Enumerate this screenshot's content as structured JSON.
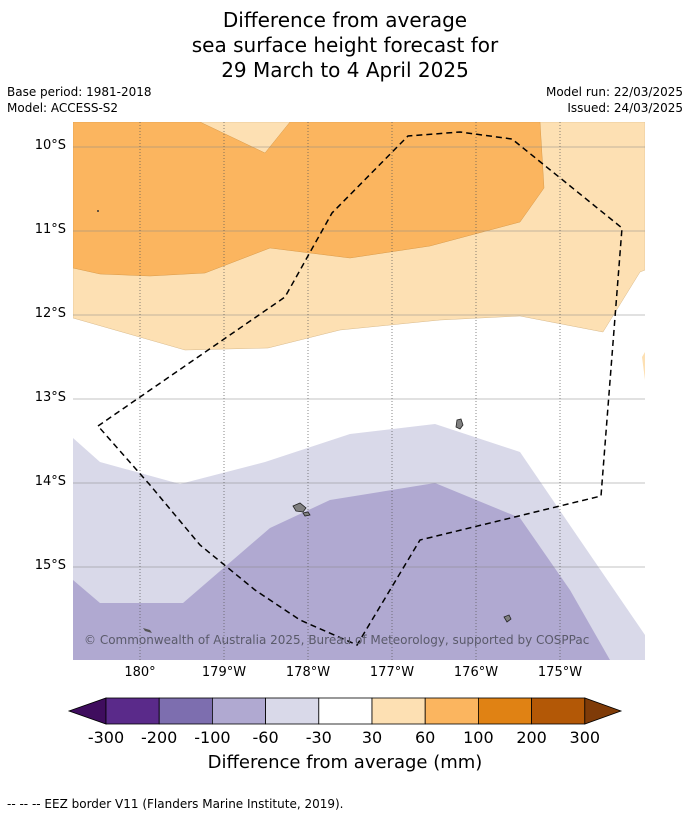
{
  "title_lines": [
    "Difference from average",
    "sea surface height forecast for",
    "29 March to 4 April 2025"
  ],
  "base_period": "Base period: 1981-2018",
  "model": "Model: ACCESS-S2",
  "model_run": "Model run: 22/03/2025",
  "issued": "Issued: 24/03/2025",
  "lat_labels": [
    "10°S",
    "11°S",
    "12°S",
    "13°S",
    "14°S",
    "15°S"
  ],
  "lon_labels": [
    "180°",
    "179°W",
    "178°W",
    "177°W",
    "176°W",
    "175°W"
  ],
  "copyright": "© Commonwealth of Australia 2025, Bureau of Meteorology, supported by COSPPac",
  "colorbar": {
    "labels": [
      "-300",
      "-200",
      "-100",
      "-60",
      "-30",
      "30",
      "60",
      "100",
      "200",
      "300"
    ],
    "colors": [
      "#3f0d5e",
      "#5a2a8a",
      "#7d6eaf",
      "#b0a9d1",
      "#d9d9e9",
      "#ffffff",
      "#fde0b3",
      "#fbb55f",
      "#e08214",
      "#b35806",
      "#7f3b08"
    ],
    "title": "Difference from average (mm)"
  },
  "legend_text": "-- -- -- EEZ border V11 (Flanders Marine Institute, 2019)."
}
